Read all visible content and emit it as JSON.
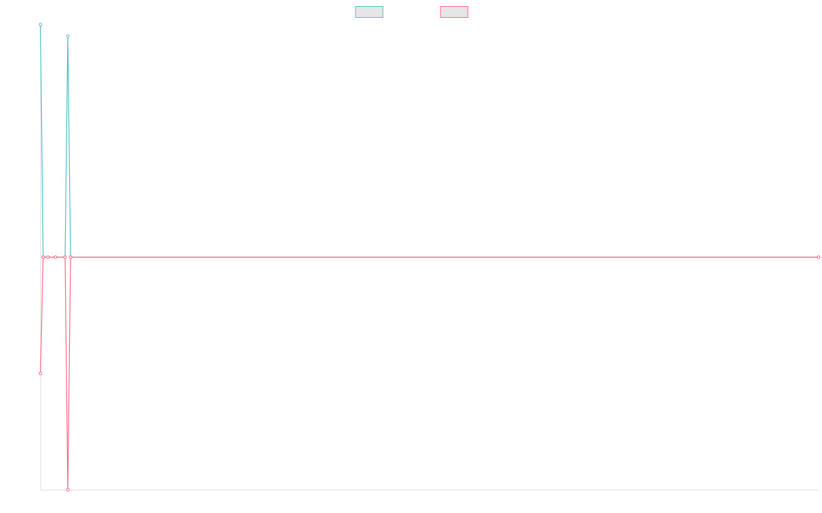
{
  "chart_data": {
    "type": "line",
    "x": [
      0,
      1,
      2.75,
      5.5,
      9,
      10,
      11,
      284
    ],
    "xlim": [
      0,
      284
    ],
    "ylim": [
      -1,
      1
    ],
    "series": [
      {
        "color": "#4bc0c0",
        "values": [
          1.0,
          0,
          0,
          0,
          0,
          0.95,
          0,
          0
        ]
      },
      {
        "color": "#ff6384",
        "values": [
          -0.5,
          0,
          0,
          0,
          0,
          -1.0,
          0,
          0
        ]
      }
    ]
  }
}
